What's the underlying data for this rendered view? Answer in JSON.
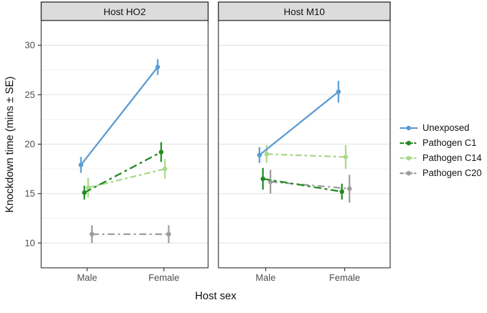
{
  "figure": {
    "kind": "faceted interaction plot (ggplot style), points with SE error bars connected by lines"
  },
  "chart_data": {
    "type": "line",
    "xlabel": "Host sex",
    "ylabel": "Knockdown time (mins ± SE)",
    "categories": [
      "Male",
      "Female"
    ],
    "yticks": [
      10,
      15,
      20,
      25,
      30
    ],
    "ylim": [
      7.5,
      32.5
    ],
    "grid": "horizontal major and minor gridlines, white panel, black panel border",
    "legend_position": "right",
    "error_bars": "mean ± SE vertical linerange, no caps",
    "facets": [
      {
        "title": "Host HO2",
        "series": [
          {
            "name": "Unexposed",
            "means": [
              17.9,
              27.8
            ],
            "se": [
              0.8,
              0.8
            ]
          },
          {
            "name": "Pathogen C1",
            "means": [
              15.1,
              19.2
            ],
            "se": [
              0.7,
              1.0
            ]
          },
          {
            "name": "Pathogen C14",
            "means": [
              15.6,
              17.5
            ],
            "se": [
              1.0,
              1.0
            ]
          },
          {
            "name": "Pathogen C20",
            "means": [
              10.9,
              10.9
            ],
            "se": [
              0.9,
              0.9
            ]
          }
        ]
      },
      {
        "title": "Host M10",
        "series": [
          {
            "name": "Unexposed",
            "means": [
              18.9,
              25.3
            ],
            "se": [
              0.8,
              1.1
            ]
          },
          {
            "name": "Pathogen C1",
            "means": [
              16.5,
              15.2
            ],
            "se": [
              1.1,
              0.8
            ]
          },
          {
            "name": "Pathogen C14",
            "means": [
              19.0,
              18.7
            ],
            "se": [
              0.9,
              1.2
            ]
          },
          {
            "name": "Pathogen C20",
            "means": [
              16.2,
              15.5
            ],
            "se": [
              1.2,
              1.4
            ]
          }
        ]
      }
    ]
  },
  "legend": {
    "items": [
      {
        "label": "Unexposed",
        "color": "#5B9BD5",
        "dash": "",
        "linetype": "solid"
      },
      {
        "label": "Pathogen C1",
        "color": "#228B22",
        "dash": "11,5,4,5",
        "linetype": "dash-dot"
      },
      {
        "label": "Pathogen C14",
        "color": "#A9D98A",
        "dash": "9,4,4,4",
        "linetype": "dash-dot"
      },
      {
        "label": "Pathogen C20",
        "color": "#9C9C9C",
        "dash": "10,5,3,5",
        "linetype": "dash-dot"
      }
    ]
  },
  "style": {
    "strip_bg": "#DCDCDC",
    "strip_border": "#2B2B2B",
    "panel_bg": "#FFFFFF",
    "panel_border": "#333333",
    "grid_major": "#E4E4E4",
    "grid_minor": "#F2F2F2",
    "axis_text": "#4D4D4D",
    "text": "#111111"
  }
}
